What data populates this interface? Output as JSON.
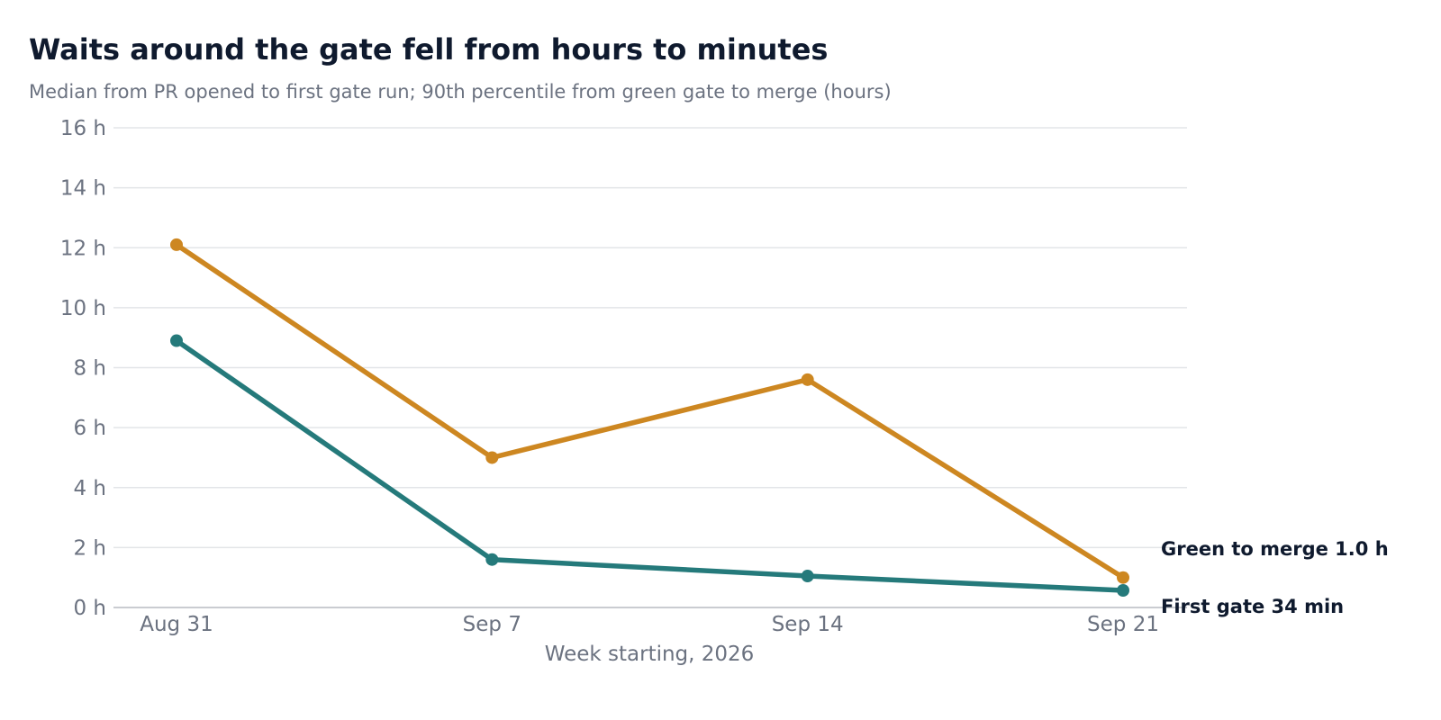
{
  "chart_data": {
    "type": "line",
    "title": "Waits around the gate fell from hours to minutes",
    "subtitle": "Median from PR opened to first gate run; 90th percentile from green gate to merge (hours)",
    "xlabel": "Week starting, 2026",
    "ylabel": "",
    "x": [
      "Aug 31",
      "Sep 7",
      "Sep 14",
      "Sep 21"
    ],
    "ylim": [
      0,
      16
    ],
    "y_ticks": [
      0,
      2,
      4,
      6,
      8,
      10,
      12,
      14,
      16
    ],
    "y_tick_labels": [
      "0 h",
      "2 h",
      "4 h",
      "6 h",
      "8 h",
      "10 h",
      "12 h",
      "14 h",
      "16 h"
    ],
    "grid": true,
    "legend": "direct labels at line ends",
    "series": [
      {
        "name": "Green to merge",
        "values": [
          12.1,
          5.0,
          7.6,
          1.0
        ],
        "color": "#cd8721",
        "end_label": "Green to merge  1.0 h"
      },
      {
        "name": "First gate",
        "values": [
          8.9,
          1.6,
          1.05,
          0.57
        ],
        "color": "#257a7b",
        "end_label": "First gate  34 min"
      }
    ]
  }
}
